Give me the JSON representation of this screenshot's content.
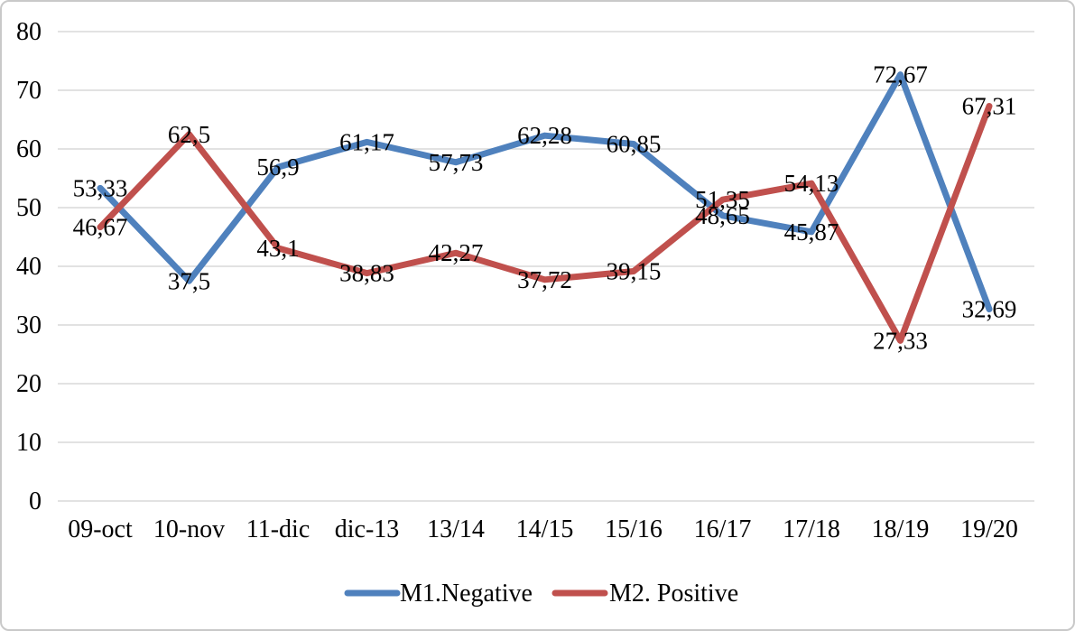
{
  "chart_data": {
    "type": "line",
    "title": "",
    "xlabel": "",
    "ylabel": "",
    "categories": [
      "09-oct",
      "10-nov",
      "11-dic",
      "dic-13",
      "13/14",
      "14/15",
      "15/16",
      "16/17",
      "17/18",
      "18/19",
      "19/20"
    ],
    "series": [
      {
        "name": "M1.Negative",
        "color": "#4F81BD",
        "values": [
          53.33,
          37.5,
          56.9,
          61.17,
          57.73,
          62.28,
          60.85,
          48.65,
          45.87,
          72.67,
          32.69
        ],
        "labels": [
          "53,33",
          "37,5",
          "56,9",
          "61,17",
          "57,73",
          "62,28",
          "60,85",
          "48,65",
          "45,87",
          "72,67",
          "32,69"
        ]
      },
      {
        "name": "M2. Positive",
        "color": "#C0504D",
        "values": [
          46.67,
          62.5,
          43.1,
          38.83,
          42.27,
          37.72,
          39.15,
          51.35,
          54.13,
          27.33,
          67.31
        ],
        "labels": [
          "46,67",
          "62,5",
          "43,1",
          "38,83",
          "42,27",
          "37,72",
          "39,15",
          "51,35",
          "54,13",
          "27,33",
          "67,31"
        ]
      }
    ],
    "ylim": [
      0,
      80
    ],
    "yticks": [
      0,
      10,
      20,
      30,
      40,
      50,
      60,
      70,
      80
    ],
    "grid": true,
    "legend_position": "bottom",
    "data_label_position": "center",
    "decimal_separator": ","
  },
  "styles": {
    "background": "#FFFFFF",
    "border_color": "#C9C9C9",
    "grid_color": "#D9D9D9",
    "text_color": "#000000",
    "line_width": 7
  }
}
